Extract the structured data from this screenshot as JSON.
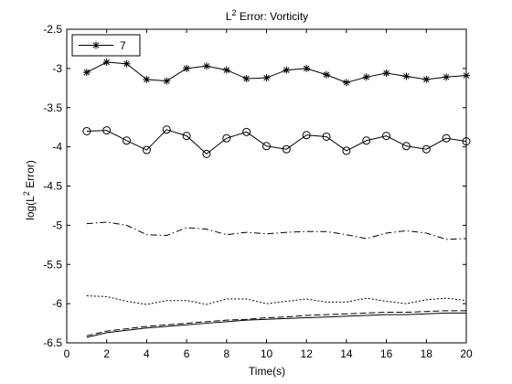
{
  "chart_data": {
    "type": "line",
    "title_base": "L",
    "title_sup": "2",
    "title_rest": " Error: Vorticity",
    "xlabel": "Time(s)",
    "ylabel_base": "log(L",
    "ylabel_sup": "2",
    "ylabel_rest": " Error)",
    "xlim": [
      0,
      20
    ],
    "ylim": [
      -6.5,
      -2.5
    ],
    "xticks": [
      "0",
      "2",
      "4",
      "6",
      "8",
      "10",
      "12",
      "14",
      "16",
      "18",
      "20"
    ],
    "yticks": [
      "-2.5",
      "-3",
      "-3.5",
      "-4",
      "-4.5",
      "-5",
      "-5.5",
      "-6",
      "-6.5"
    ],
    "grid": false,
    "legend_position": "top-left",
    "x": [
      1,
      2,
      3,
      4,
      5,
      6,
      7,
      8,
      9,
      10,
      11,
      12,
      13,
      14,
      15,
      16,
      17,
      18,
      19,
      20
    ],
    "series": [
      {
        "name": "7",
        "style": "solid",
        "marker": "star",
        "values": [
          -3.05,
          -2.92,
          -2.94,
          -3.14,
          -3.16,
          -3.0,
          -2.97,
          -3.02,
          -3.13,
          -3.12,
          -3.02,
          -3.0,
          -3.08,
          -3.18,
          -3.11,
          -3.06,
          -3.1,
          -3.14,
          -3.11,
          -3.09
        ]
      },
      {
        "style": "solid",
        "marker": "circle",
        "values": [
          -3.8,
          -3.79,
          -3.92,
          -4.04,
          -3.78,
          -3.86,
          -4.09,
          -3.89,
          -3.81,
          -3.99,
          -4.03,
          -3.85,
          -3.87,
          -4.05,
          -3.92,
          -3.86,
          -3.99,
          -4.03,
          -3.89,
          -3.93
        ]
      },
      {
        "style": "dashdot",
        "marker": "none",
        "values": [
          -4.98,
          -4.96,
          -5.0,
          -5.12,
          -5.13,
          -5.03,
          -5.05,
          -5.12,
          -5.09,
          -5.11,
          -5.09,
          -5.08,
          -5.08,
          -5.12,
          -5.17,
          -5.1,
          -5.07,
          -5.1,
          -5.18,
          -5.17
        ]
      },
      {
        "style": "dotted",
        "marker": "none",
        "values": [
          -5.9,
          -5.91,
          -5.97,
          -6.01,
          -5.96,
          -5.96,
          -6.01,
          -5.94,
          -5.94,
          -6.0,
          -5.97,
          -5.94,
          -5.98,
          -5.98,
          -5.93,
          -5.97,
          -6.0,
          -5.95,
          -5.93,
          -5.96
        ]
      },
      {
        "style": "dashed",
        "marker": "none",
        "values": [
          -6.41,
          -6.35,
          -6.32,
          -6.29,
          -6.27,
          -6.25,
          -6.23,
          -6.21,
          -6.2,
          -6.18,
          -6.17,
          -6.15,
          -6.14,
          -6.13,
          -6.12,
          -6.11,
          -6.11,
          -6.1,
          -6.09,
          -6.09
        ]
      },
      {
        "style": "solid",
        "marker": "none",
        "values": [
          -6.43,
          -6.37,
          -6.34,
          -6.31,
          -6.29,
          -6.27,
          -6.25,
          -6.23,
          -6.21,
          -6.2,
          -6.19,
          -6.18,
          -6.17,
          -6.16,
          -6.15,
          -6.14,
          -6.14,
          -6.13,
          -6.12,
          -6.12
        ]
      }
    ]
  }
}
